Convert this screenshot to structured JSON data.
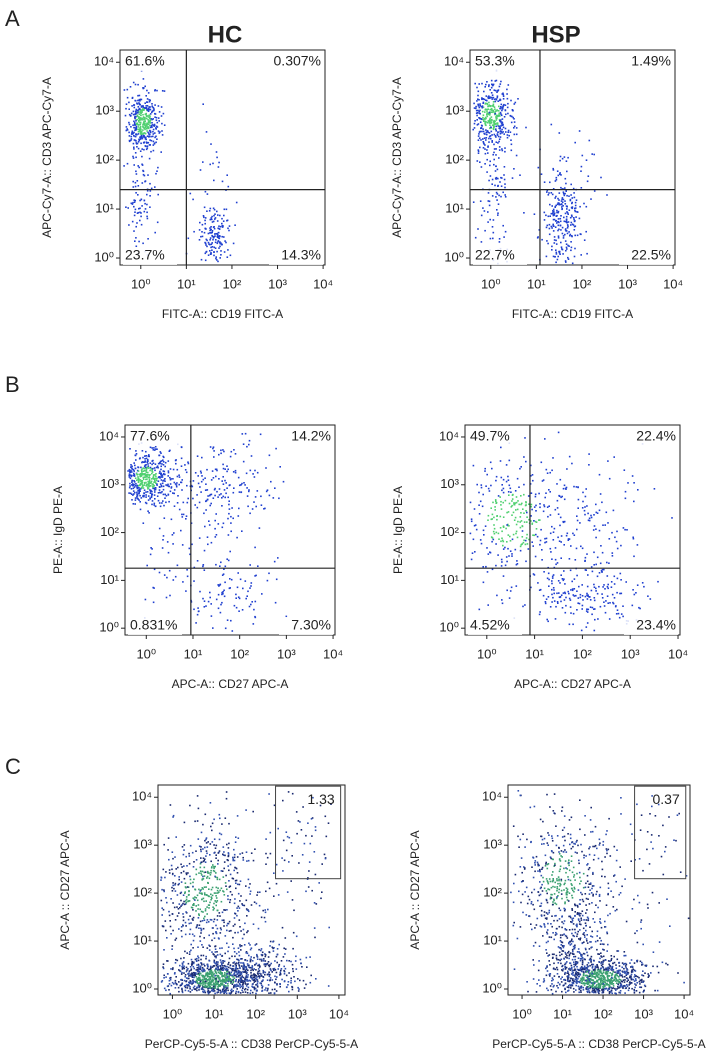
{
  "panels": [
    {
      "label": "A",
      "columns": [
        "HC",
        "HSP"
      ],
      "plots": [
        {
          "x_label": "FITC-A:: CD19 FITC-A",
          "y_label": "APC-Cy7-A:: CD3 APC-Cy7-A",
          "xlim": [
            0.35,
            11000
          ],
          "ylim": [
            0.72,
            17800
          ],
          "xticks": [
            {
              "value": 1,
              "label": "10⁰"
            },
            {
              "value": 10,
              "label": "10¹"
            },
            {
              "value": 100,
              "label": "10²"
            },
            {
              "value": 1000,
              "label": "10³"
            },
            {
              "value": 10000,
              "label": "10⁴"
            }
          ],
          "yticks": [
            {
              "value": 1,
              "label": "10⁰"
            },
            {
              "value": 10,
              "label": "10¹"
            },
            {
              "value": 100,
              "label": "10²"
            },
            {
              "value": 1000,
              "label": "10³"
            },
            {
              "value": 10000,
              "label": "10⁴"
            }
          ],
          "gate_x": 10,
          "gate_y": 25,
          "quadrants": [
            {
              "value": 61.6,
              "label": "61.6%"
            },
            {
              "value": 0.307,
              "label": "0.307%"
            },
            {
              "value": 23.7,
              "label": "23.7%"
            },
            {
              "value": 14.3,
              "label": "14.3%"
            }
          ]
        },
        {
          "x_label": "FITC-A:: CD19 FITC-A",
          "y_label": "APC-Cy7-A:: CD3 APC-Cy7-A",
          "xlim": [
            0.35,
            11000
          ],
          "ylim": [
            0.72,
            17800
          ],
          "xticks": [
            {
              "value": 1,
              "label": "10⁰"
            },
            {
              "value": 10,
              "label": "10¹"
            },
            {
              "value": 100,
              "label": "10²"
            },
            {
              "value": 1000,
              "label": "10³"
            },
            {
              "value": 10000,
              "label": "10⁴"
            }
          ],
          "yticks": [
            {
              "value": 1,
              "label": "10⁰"
            },
            {
              "value": 10,
              "label": "10¹"
            },
            {
              "value": 100,
              "label": "10²"
            },
            {
              "value": 1000,
              "label": "10³"
            },
            {
              "value": 10000,
              "label": "10⁴"
            }
          ],
          "gate_x": 12,
          "gate_y": 25,
          "quadrants": [
            {
              "value": 53.3,
              "label": "53.3%"
            },
            {
              "value": 1.49,
              "label": "1.49%"
            },
            {
              "value": 22.7,
              "label": "22.7%"
            },
            {
              "value": 22.5,
              "label": "22.5%"
            }
          ]
        }
      ]
    },
    {
      "label": "B",
      "plots": [
        {
          "x_label": "APC-A:: CD27 APC-A",
          "y_label": "PE-A:: IgD PE-A",
          "xlim": [
            0.35,
            11000
          ],
          "ylim": [
            0.72,
            17800
          ],
          "xticks": [
            {
              "value": 1,
              "label": "10⁰"
            },
            {
              "value": 10,
              "label": "10¹"
            },
            {
              "value": 100,
              "label": "10²"
            },
            {
              "value": 1000,
              "label": "10³"
            },
            {
              "value": 10000,
              "label": "10⁴"
            }
          ],
          "yticks": [
            {
              "value": 1,
              "label": "10⁰"
            },
            {
              "value": 10,
              "label": "10¹"
            },
            {
              "value": 100,
              "label": "10²"
            },
            {
              "value": 1000,
              "label": "10³"
            },
            {
              "value": 10000,
              "label": "10⁴"
            }
          ],
          "gate_x": 9,
          "gate_y": 18,
          "quadrants": [
            {
              "value": 77.6,
              "label": "77.6%"
            },
            {
              "value": 14.2,
              "label": "14.2%"
            },
            {
              "value": 0.831,
              "label": "0.831%"
            },
            {
              "value": 7.3,
              "label": "7.30%"
            }
          ]
        },
        {
          "x_label": "APC-A:: CD27 APC-A",
          "y_label": "PE-A:: IgD PE-A",
          "xlim": [
            0.35,
            11000
          ],
          "ylim": [
            0.72,
            17800
          ],
          "xticks": [
            {
              "value": 1,
              "label": "10⁰"
            },
            {
              "value": 10,
              "label": "10¹"
            },
            {
              "value": 100,
              "label": "10²"
            },
            {
              "value": 1000,
              "label": "10³"
            },
            {
              "value": 10000,
              "label": "10⁴"
            }
          ],
          "yticks": [
            {
              "value": 1,
              "label": "10⁰"
            },
            {
              "value": 10,
              "label": "10¹"
            },
            {
              "value": 100,
              "label": "10²"
            },
            {
              "value": 1000,
              "label": "10³"
            },
            {
              "value": 10000,
              "label": "10⁴"
            }
          ],
          "gate_x": 8,
          "gate_y": 18,
          "quadrants": [
            {
              "value": 49.7,
              "label": "49.7%"
            },
            {
              "value": 22.4,
              "label": "22.4%"
            },
            {
              "value": 4.52,
              "label": "4.52%"
            },
            {
              "value": 23.4,
              "label": "23.4%"
            }
          ]
        }
      ]
    },
    {
      "label": "C",
      "plots": [
        {
          "x_label": "PerCP-Cy5-5-A :: CD38 PerCP-Cy5-5-A",
          "y_label": "APC-A :: CD27 APC-A",
          "xlim": [
            0.45,
            14000
          ],
          "ylim": [
            0.75,
            18000
          ],
          "xticks": [
            {
              "value": 1,
              "label": "10⁰"
            },
            {
              "value": 10,
              "label": "10¹"
            },
            {
              "value": 100,
              "label": "10²"
            },
            {
              "value": 1000,
              "label": "10³"
            },
            {
              "value": 10000,
              "label": "10⁴"
            }
          ],
          "yticks": [
            {
              "value": 1,
              "label": "10⁰"
            },
            {
              "value": 10,
              "label": "10¹"
            },
            {
              "value": 100,
              "label": "10²"
            },
            {
              "value": 1000,
              "label": "10³"
            },
            {
              "value": 10000,
              "label": "10⁴"
            }
          ],
          "gate": {
            "x": [
              300,
              11000
            ],
            "y": [
              200,
              17000
            ],
            "value": 1.33
          }
        },
        {
          "x_label": "PerCP-Cy5-5-A :: CD38 PerCP-Cy5-5-A",
          "y_label": "APC-A :: CD27 APC-A",
          "xlim": [
            0.45,
            14000
          ],
          "ylim": [
            0.75,
            18000
          ],
          "xticks": [
            {
              "value": 1,
              "label": "10⁰"
            },
            {
              "value": 10,
              "label": "10¹"
            },
            {
              "value": 100,
              "label": "10²"
            },
            {
              "value": 1000,
              "label": "10³"
            },
            {
              "value": 10000,
              "label": "10⁴"
            }
          ],
          "yticks": [
            {
              "value": 1,
              "label": "10⁰"
            },
            {
              "value": 10,
              "label": "10¹"
            },
            {
              "value": 100,
              "label": "10²"
            },
            {
              "value": 1000,
              "label": "10³"
            },
            {
              "value": 10000,
              "label": "10⁴"
            }
          ],
          "gate": {
            "x": [
              600,
              11000
            ],
            "y": [
              200,
              17000
            ],
            "value": 0.37
          }
        }
      ]
    }
  ]
}
